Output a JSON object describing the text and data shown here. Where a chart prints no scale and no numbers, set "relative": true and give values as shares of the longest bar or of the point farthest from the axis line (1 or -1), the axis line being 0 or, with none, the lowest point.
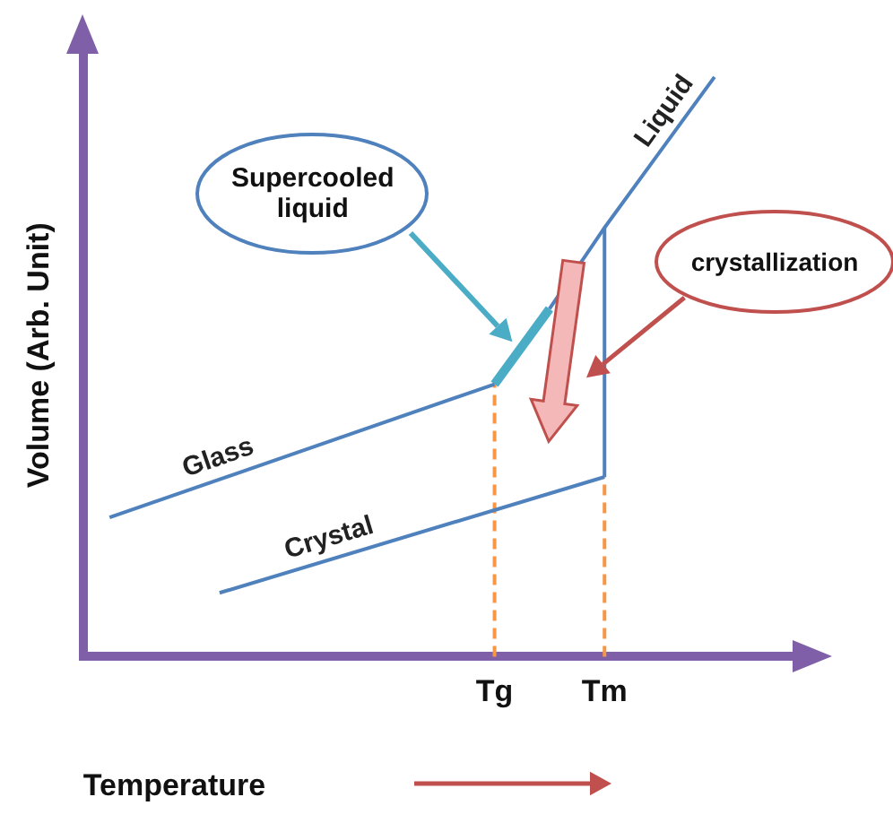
{
  "chart_data": {
    "type": "line",
    "relative": true,
    "ylabel": "Volume (Arb. Unit)",
    "xlabel": "Temperature",
    "grid": false,
    "marker": "none",
    "annotations": [
      "crystallization"
    ],
    "categories": [
      null,
      null,
      null,
      null,
      null,
      null,
      null,
      "Tg",
      null,
      "Tm",
      null,
      null
    ],
    "series": [
      {
        "name": "Glass",
        "color": "#4f81bd",
        "values": [
          0.24,
          null,
          null,
          null,
          null,
          null,
          null,
          0.47,
          null,
          null,
          null,
          null
        ]
      },
      {
        "name": "Liquid",
        "color": "#4f81bd",
        "values": [
          null,
          null,
          null,
          null,
          null,
          null,
          null,
          null,
          0.6,
          0.74,
          0.87,
          1
        ]
      },
      {
        "name": "Supercooled liquid",
        "color": "#4bacc6",
        "values": [
          null,
          null,
          null,
          null,
          null,
          null,
          null,
          0.47,
          0.6,
          null,
          null,
          null
        ]
      },
      {
        "name": "Crystal",
        "color": "#4f81bd",
        "values": [
          null,
          null,
          0.11,
          null,
          null,
          null,
          null,
          null,
          null,
          0.31,
          null,
          null
        ]
      }
    ],
    "ref_lines": [
      {
        "axis": "x",
        "value": "Tg",
        "color": "#f79646",
        "line_style": "dashed"
      },
      {
        "axis": "x",
        "value": "Tm",
        "color": "#f79646",
        "line_style": "dashed"
      },
      {
        "axis": "x",
        "value": "Tm",
        "color": "#4f81bd"
      }
    ]
  }
}
